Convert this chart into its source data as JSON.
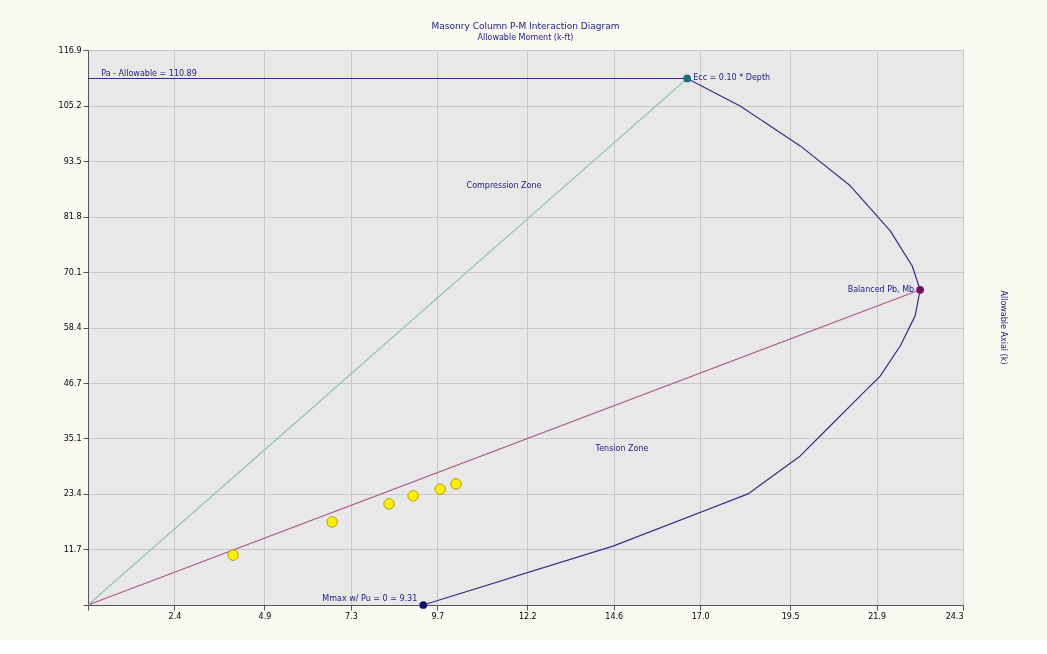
{
  "chart_data": {
    "type": "line",
    "title": "Masonry Column P-M Interaction Diagram",
    "xlabel": "Allowable Moment (k-ft)",
    "ylabel": "Allowable Axial (k)",
    "xlim": [
      0,
      24.3
    ],
    "ylim": [
      0,
      116.9
    ],
    "xticks": [
      {
        "value": 0,
        "label": null
      },
      2.4,
      4.9,
      7.3,
      9.7,
      12.2,
      14.6,
      {
        "value": 17,
        "label": "17.0"
      },
      19.5,
      21.9,
      24.3
    ],
    "yticks": [
      {
        "value": 0,
        "label": null
      },
      11.7,
      23.4,
      35.1,
      46.7,
      58.4,
      70.1,
      81.8,
      93.5,
      105.2,
      116.9
    ],
    "grid": true,
    "series": [
      {
        "color": "#8fc4b0",
        "x": [
          0,
          16.64
        ],
        "values": [
          0,
          110.9
        ]
      },
      {
        "color": "#b05a8a",
        "x": [
          0,
          23.11
        ],
        "values": [
          0,
          66.4
        ]
      },
      {
        "color": "#30308a",
        "x": [
          0,
          16.64,
          18.11,
          19.78,
          21.17,
          22.28,
          22.89,
          23.11,
          22.97,
          22.56,
          22.0,
          21.44,
          20.61,
          19.78,
          18.33,
          14.58,
          9.31
        ],
        "values": [
          110.9,
          110.9,
          105.1,
          96.7,
          88.3,
          78.8,
          71.4,
          66.4,
          60.9,
          54.6,
          48.2,
          44.0,
          37.7,
          31.4,
          23.4,
          12.4,
          0
        ]
      },
      {
        "type": "scatter",
        "marker": "circle",
        "color": "#ffee00",
        "x": [
          4.03,
          6.78,
          8.36,
          9.03,
          9.78,
          10.22
        ],
        "values": [
          10.5,
          17.5,
          21.3,
          23.0,
          24.4,
          25.5
        ]
      },
      {
        "type": "scatter",
        "marker": "circle",
        "colors": [
          "#1f6f7a",
          "#7a1060",
          "#10106a"
        ],
        "x": [
          16.64,
          23.11,
          9.31
        ],
        "values": [
          110.9,
          66.4,
          0
        ]
      }
    ],
    "annotations": [
      {
        "text": "Pa - Allowable = 110.89",
        "x": 0.2,
        "y": 111.9
      },
      {
        "text": "Ecc = 0.10 * Depth",
        "x": 16.64,
        "y": 110.9
      },
      {
        "text": "Balanced Pb, Mb",
        "x": 23.11,
        "y": 66.4
      },
      {
        "text": "Mmax w/ Pu = 0 = 9.31",
        "x": 9.31,
        "y": 0
      },
      "Compression Zone",
      "Tension Zone"
    ]
  }
}
